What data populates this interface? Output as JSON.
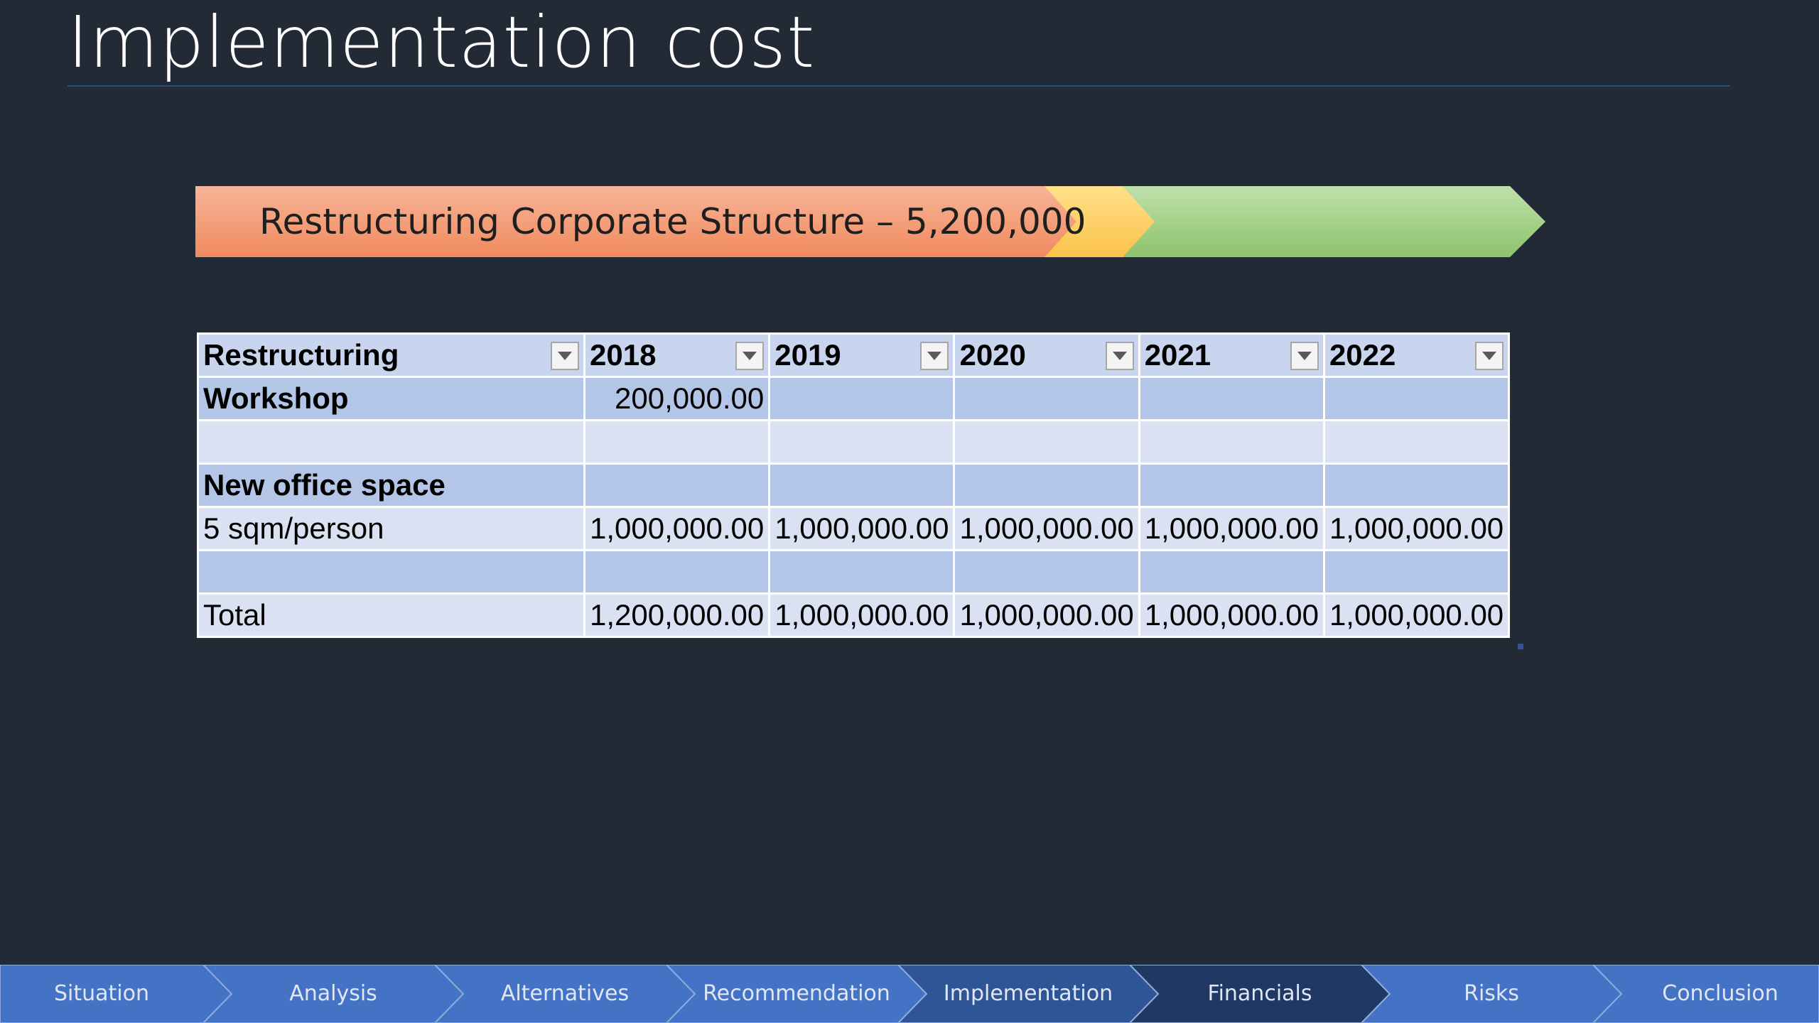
{
  "slide": {
    "title": "Implementation cost"
  },
  "banner": {
    "label": "Restructuring Corporate Structure – 5,200,000",
    "colors": {
      "orange": "#f4a07e",
      "yellow": "#ffd466",
      "green": "#a9d18e"
    }
  },
  "table": {
    "headers": [
      "Restructuring",
      "2018",
      "2019",
      "2020",
      "2021",
      "2022"
    ],
    "rows": [
      {
        "label": "Workshop",
        "values": [
          "200,000.00",
          "",
          "",
          "",
          ""
        ]
      },
      {
        "label": "",
        "values": [
          "",
          "",
          "",
          "",
          ""
        ]
      },
      {
        "label": "New office space",
        "values": [
          "",
          "",
          "",
          "",
          ""
        ]
      },
      {
        "label": "5 sqm/person",
        "values": [
          "1,000,000.00",
          "1,000,000.00",
          "1,000,000.00",
          "1,000,000.00",
          "1,000,000.00"
        ]
      },
      {
        "label": "",
        "values": [
          "",
          "",
          "",
          "",
          ""
        ]
      },
      {
        "label": "Total",
        "values": [
          "1,200,000.00",
          "1,000,000.00",
          "1,000,000.00",
          "1,000,000.00",
          "1,000,000.00"
        ]
      }
    ]
  },
  "nav": {
    "items": [
      "Situation",
      "Analysis",
      "Alternatives",
      "Recommendation",
      "Implementation",
      "Financials",
      "Risks",
      "Conclusion"
    ],
    "colors": {
      "default": "#4472c4",
      "active": "#2f5597",
      "highlight": "#203864"
    }
  }
}
